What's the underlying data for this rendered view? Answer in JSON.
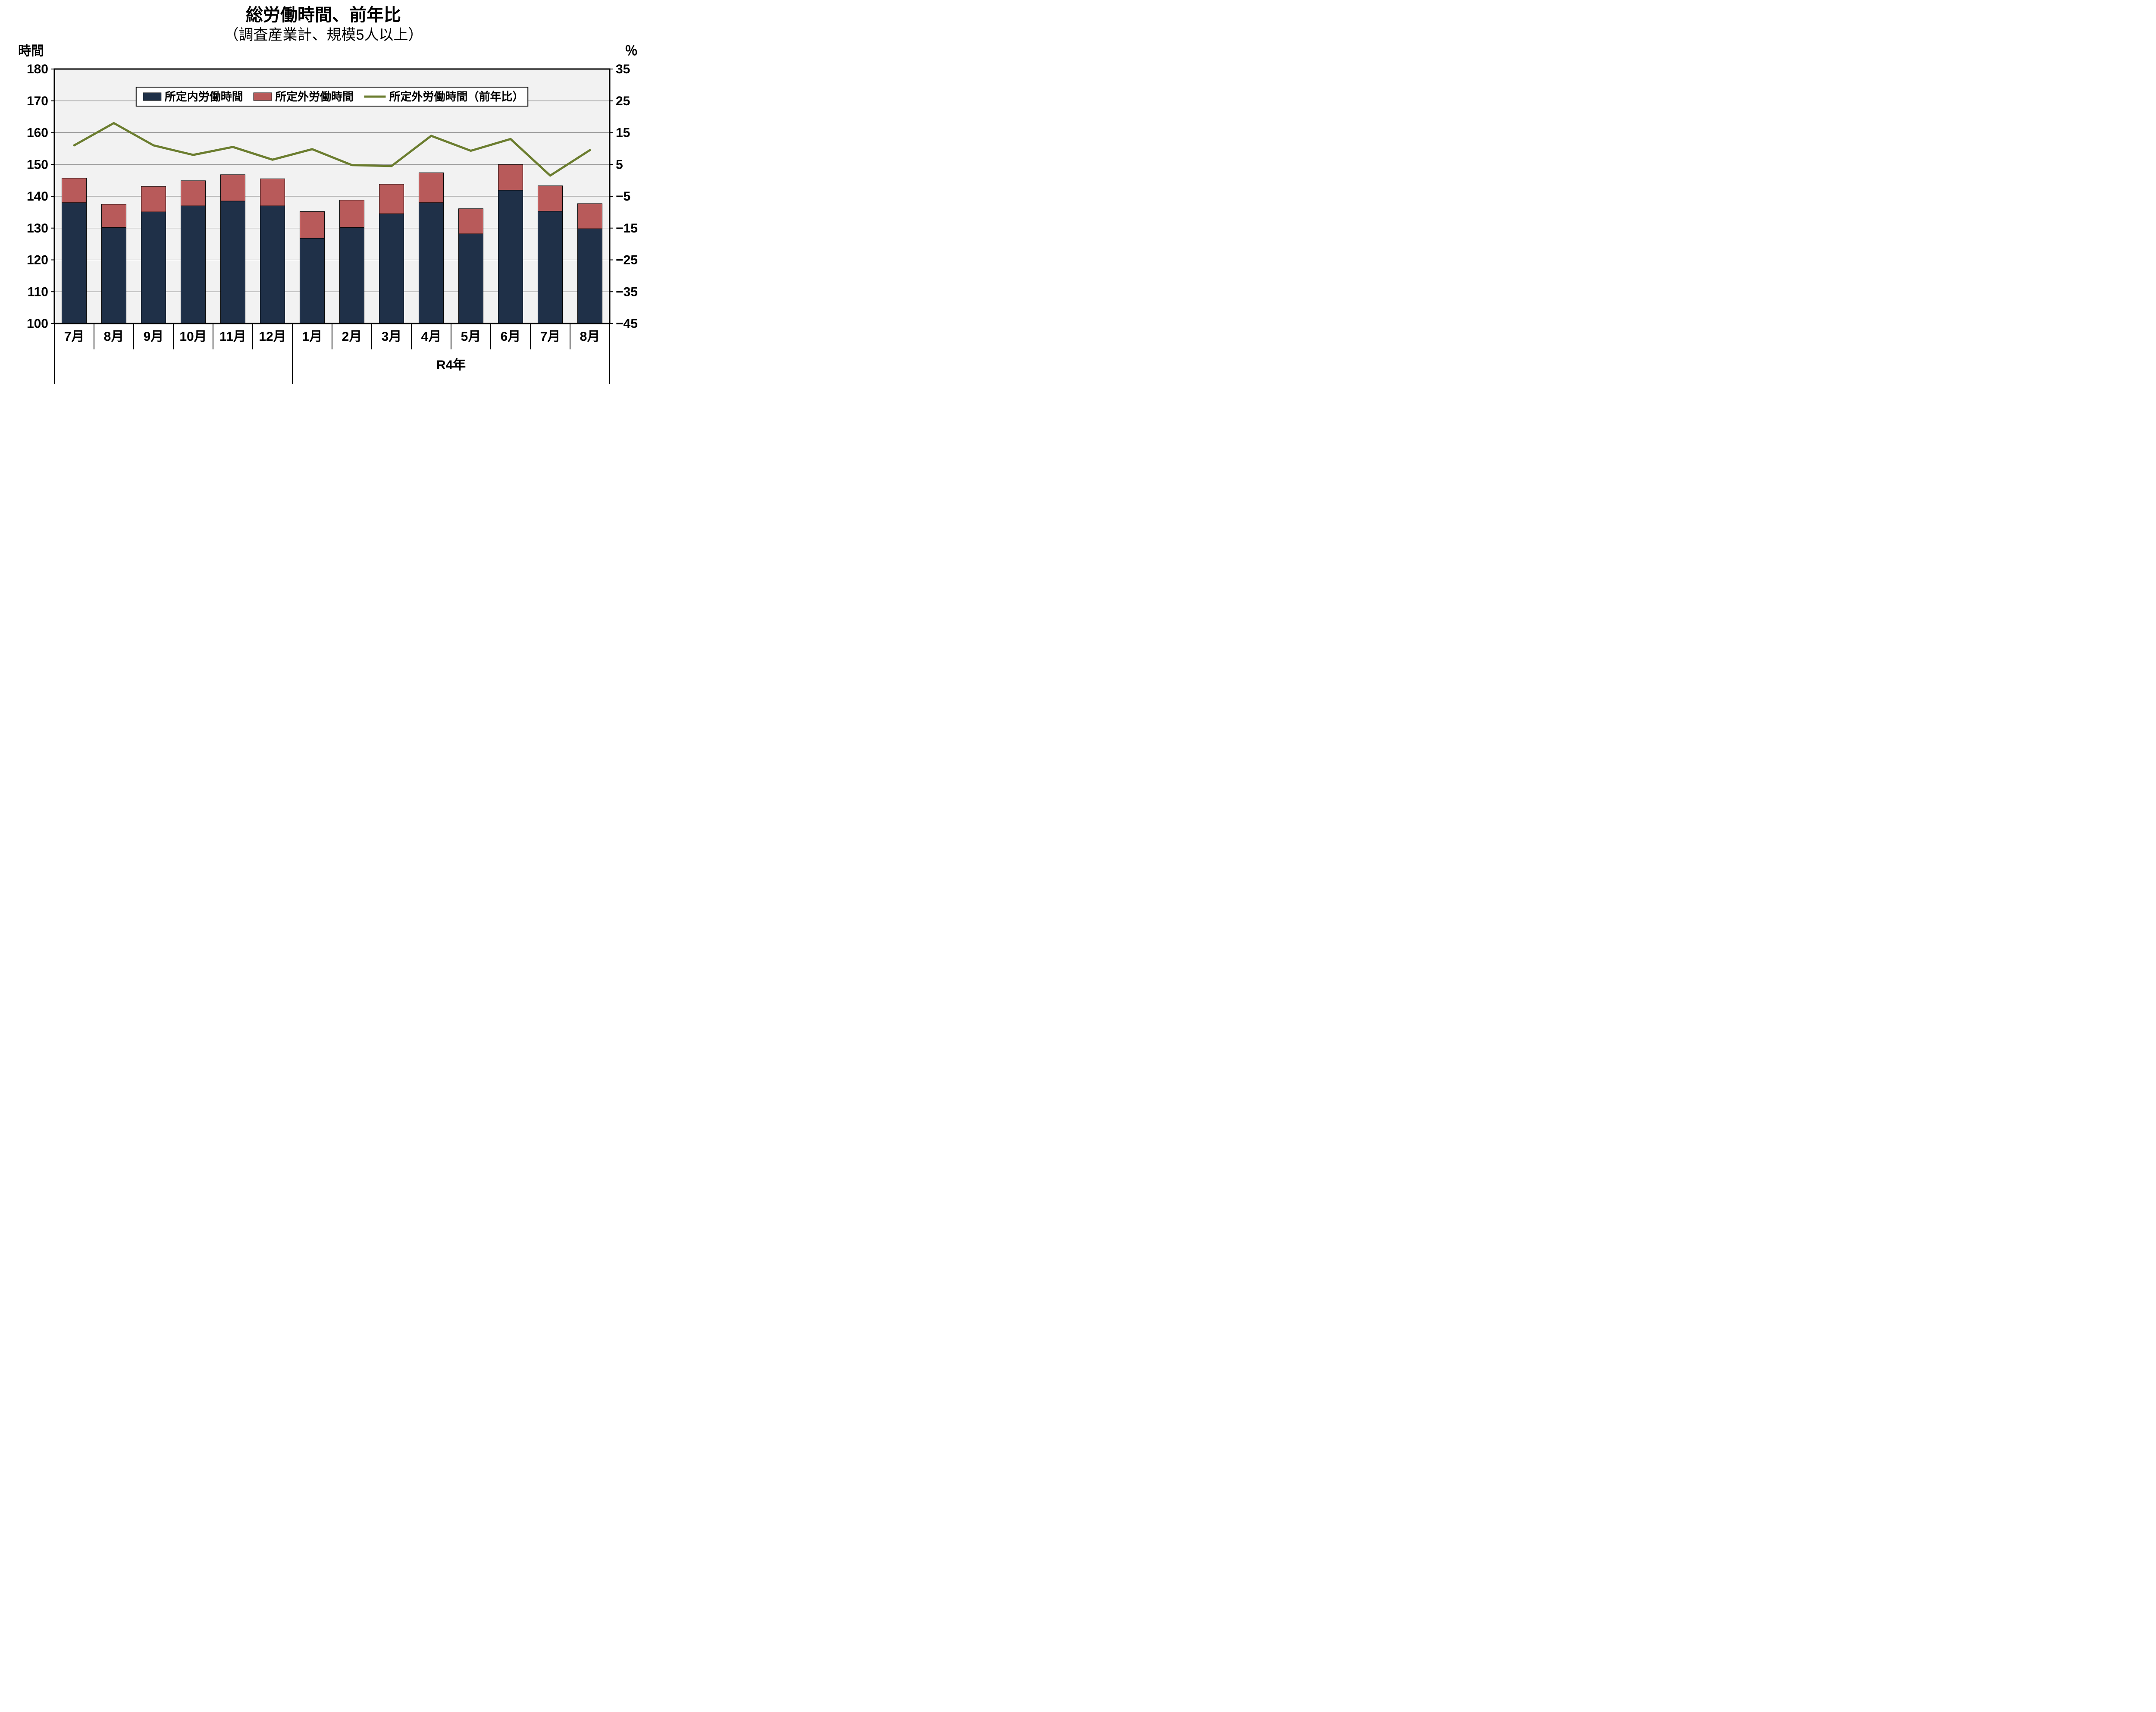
{
  "chart": {
    "type": "stacked-bar-with-line-dual-axis",
    "title_main": "総労働時間、前年比",
    "title_sub": "（調査産業計、規模5人以上）",
    "left_axis_title": "時間",
    "right_axis_title": "％",
    "title_main_fontsize": 40,
    "title_sub_fontsize": 34,
    "axis_title_fontsize": 30,
    "tick_fontsize": 30,
    "category_fontsize": 30,
    "legend_fontsize": 26,
    "background_color": "#ffffff",
    "plot_background_color": "#f2f2f2",
    "plot_border_color": "#000000",
    "grid_color": "#808080",
    "categories": [
      "7月",
      "8月",
      "9月",
      "10月",
      "11月",
      "12月",
      "1月",
      "2月",
      "3月",
      "4月",
      "5月",
      "6月",
      "7月",
      "8月"
    ],
    "group_separator_after_index": 5,
    "group_label": "R4年",
    "group_label_start_index": 6,
    "group_label_end_index": 13,
    "series_bar1": {
      "name": "所定内労働時間",
      "color": "#1f3048",
      "values": [
        138.0,
        130.2,
        135.1,
        137.0,
        138.5,
        137.0,
        126.8,
        130.2,
        134.5,
        138.0,
        128.2,
        141.9,
        135.3,
        129.8
      ]
    },
    "series_bar2": {
      "name": "所定外労働時間",
      "color": "#b85a5a",
      "values": [
        7.7,
        7.3,
        8.0,
        7.9,
        8.3,
        8.5,
        8.4,
        8.6,
        9.3,
        9.4,
        7.9,
        8.1,
        8.0,
        7.9
      ]
    },
    "series_line": {
      "name": "所定外労働時間（前年比）",
      "color": "#6b7d2f",
      "line_width": 5,
      "values": [
        11.0,
        18.0,
        11.0,
        8.0,
        10.5,
        6.5,
        9.8,
        4.8,
        4.5,
        14.0,
        9.3,
        13.0,
        1.5,
        9.5
      ]
    },
    "left_axis": {
      "min": 100,
      "max": 180,
      "step": 10
    },
    "right_axis": {
      "min": -45,
      "max": 35,
      "step": 10
    },
    "bar_width_ratio": 0.62,
    "legend": {
      "border_color": "#000000",
      "background": "#ffffff",
      "swatch_bar_w": 42,
      "swatch_bar_h": 18,
      "swatch_line_len": 50
    }
  }
}
